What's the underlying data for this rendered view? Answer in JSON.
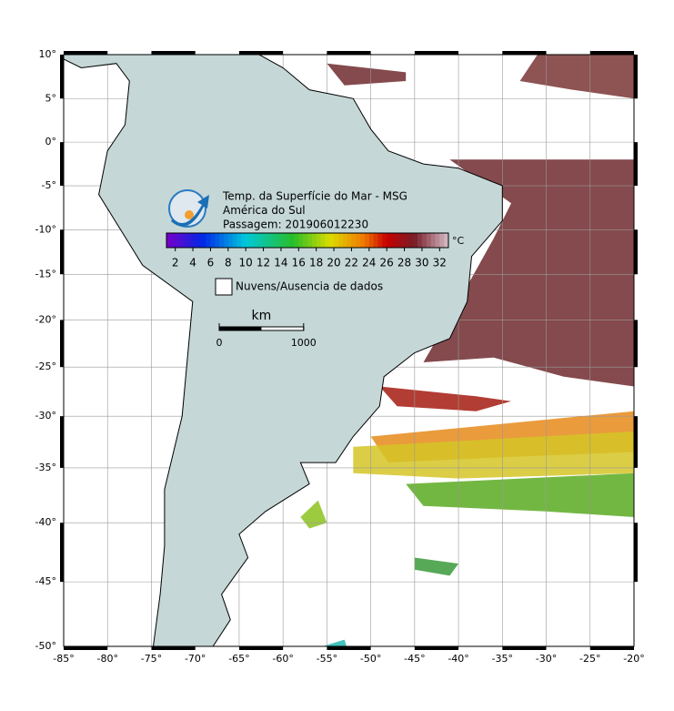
{
  "map": {
    "title_lines": [
      "Temp. da Superfície do Mar - MSG",
      "América do Sul",
      "Passagem: 201906012230"
    ],
    "lon_range": [
      -85,
      -20
    ],
    "lat_range": [
      -50,
      10
    ],
    "lon_ticks": [
      {
        "value": -85,
        "label": "-85°"
      },
      {
        "value": -80,
        "label": "-80°"
      },
      {
        "value": -75,
        "label": "-75°"
      },
      {
        "value": -70,
        "label": "-70°"
      },
      {
        "value": -65,
        "label": "-65°"
      },
      {
        "value": -60,
        "label": "-60°"
      },
      {
        "value": -55,
        "label": "-55°"
      },
      {
        "value": -50,
        "label": "-50°"
      },
      {
        "value": -45,
        "label": "-45°"
      },
      {
        "value": -40,
        "label": "-40°"
      },
      {
        "value": -35,
        "label": "-35°"
      },
      {
        "value": -30,
        "label": "-30°"
      },
      {
        "value": -25,
        "label": "-25°"
      },
      {
        "value": -20,
        "label": "-20°"
      }
    ],
    "lat_ticks": [
      {
        "value": 10,
        "label": "10°"
      },
      {
        "value": 5,
        "label": "5°"
      },
      {
        "value": 0,
        "label": "0°"
      },
      {
        "value": -5,
        "label": "-5°"
      },
      {
        "value": -10,
        "label": "-10°"
      },
      {
        "value": -15,
        "label": "-15°"
      },
      {
        "value": -20,
        "label": "-20°"
      },
      {
        "value": -25,
        "label": "-25°"
      },
      {
        "value": -30,
        "label": "-30°"
      },
      {
        "value": -35,
        "label": "-35°"
      },
      {
        "value": -40,
        "label": "-40°"
      },
      {
        "value": -45,
        "label": "-45°"
      },
      {
        "value": -50,
        "label": "-50°"
      }
    ],
    "colorbar": {
      "range": [
        1,
        33
      ],
      "ticks": [
        2,
        4,
        6,
        8,
        10,
        12,
        14,
        16,
        18,
        20,
        22,
        24,
        26,
        28,
        30,
        32
      ],
      "unit": "°C"
    },
    "legend": "Nuvens/Ausencia de dados",
    "scale_bar": {
      "unit": "km",
      "ticks": [
        0,
        1000
      ]
    }
  }
}
